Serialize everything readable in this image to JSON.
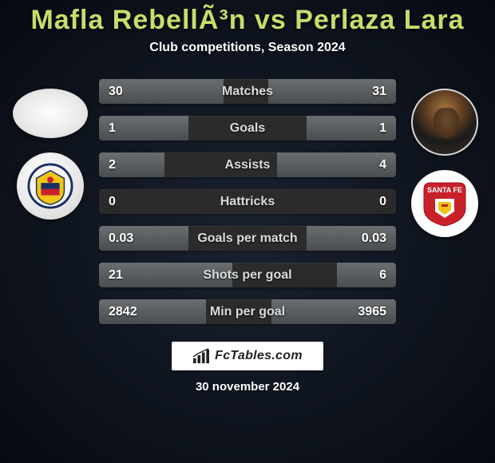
{
  "header": {
    "title": "Mafla RebellÃ³n vs Perlaza Lara",
    "subtitle": "Club competitions, Season 2024"
  },
  "stats": {
    "rows": [
      {
        "label": "Matches",
        "left": "30",
        "right": "31",
        "left_pct": 42,
        "right_pct": 43
      },
      {
        "label": "Goals",
        "left": "1",
        "right": "1",
        "left_pct": 30,
        "right_pct": 30
      },
      {
        "label": "Assists",
        "left": "2",
        "right": "4",
        "left_pct": 22,
        "right_pct": 40
      },
      {
        "label": "Hattricks",
        "left": "0",
        "right": "0",
        "left_pct": 0,
        "right_pct": 0
      },
      {
        "label": "Goals per match",
        "left": "0.03",
        "right": "0.03",
        "left_pct": 30,
        "right_pct": 30
      },
      {
        "label": "Shots per goal",
        "left": "21",
        "right": "6",
        "left_pct": 45,
        "right_pct": 20
      },
      {
        "label": "Min per goal",
        "left": "2842",
        "right": "3965",
        "left_pct": 36,
        "right_pct": 42
      }
    ],
    "bar_color": "#5a5d5f",
    "row_bg": "#2b2b2b"
  },
  "footer": {
    "brand": "FcTables.com",
    "date": "30 november 2024"
  },
  "colors": {
    "title": "#c7dd6c",
    "bg_inner": "#1a2230",
    "bg_outer": "#060a12"
  }
}
